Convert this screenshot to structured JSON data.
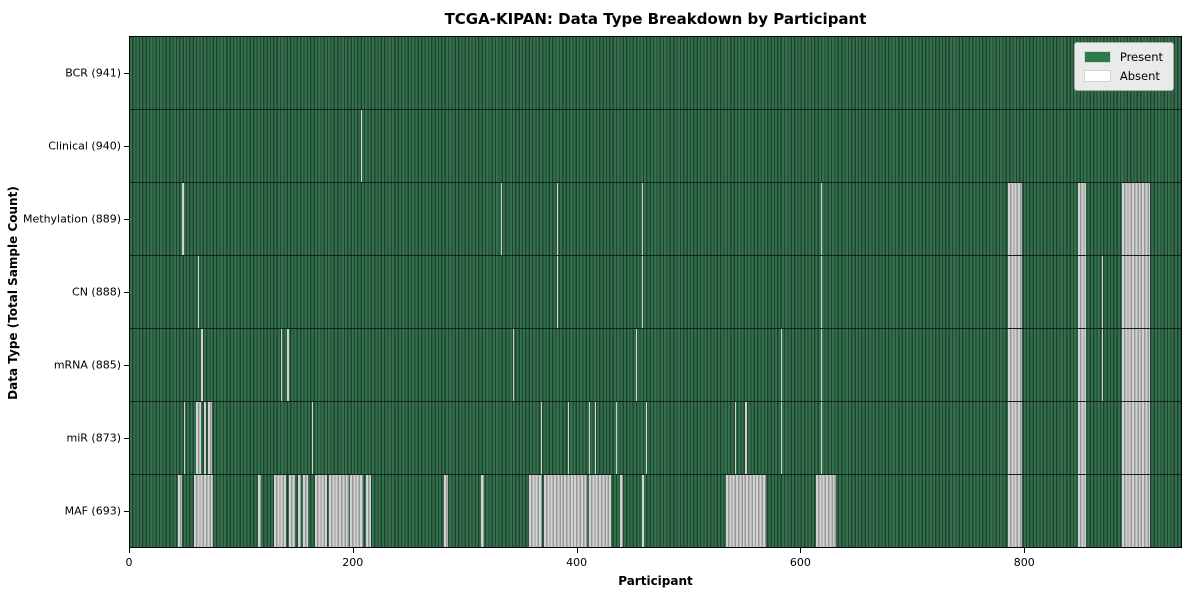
{
  "figure": {
    "title": "TCGA-KIPAN: Data Type Breakdown by Participant",
    "xlabel": "Participant",
    "ylabel": "Data Type (Total Sample Count)"
  },
  "legend": {
    "items": [
      {
        "label": "Present",
        "color": "#2d7a4d"
      },
      {
        "label": "Absent",
        "color": "#ffffff"
      }
    ]
  },
  "chart_data": {
    "type": "heatmap",
    "title": "TCGA-KIPAN: Data Type Breakdown by Participant",
    "xlabel": "Participant",
    "ylabel": "Data Type (Total Sample Count)",
    "legend_position": "upper right",
    "n_participants": 941,
    "x_ticks": [
      0,
      200,
      400,
      600,
      800
    ],
    "colors": {
      "present": "#2c6347",
      "present_stripe_light": "#33714e",
      "present_stripe_dark": "#20452f",
      "absent": "#bfbfbf",
      "absent_stripe_light": "#d2d2d2",
      "absent_stripe_dark": "#989898"
    },
    "rows": [
      {
        "name": "BCR",
        "label": "BCR (941)",
        "total": 941,
        "absent_segments": []
      },
      {
        "name": "Clinical",
        "label": "Clinical (940)",
        "total": 940,
        "absent_segments": [
          [
            207,
            208
          ]
        ]
      },
      {
        "name": "Methylation",
        "label": "Methylation (889)",
        "total": 889,
        "absent_segments": [
          [
            47,
            48
          ],
          [
            332,
            333
          ],
          [
            382,
            383
          ],
          [
            458,
            459
          ],
          [
            619,
            620
          ],
          [
            786,
            799
          ],
          [
            849,
            856
          ],
          [
            888,
            913
          ]
        ]
      },
      {
        "name": "CN",
        "label": "CN (888)",
        "total": 888,
        "absent_segments": [
          [
            61,
            62
          ],
          [
            382,
            383
          ],
          [
            458,
            459
          ],
          [
            619,
            620
          ],
          [
            786,
            799
          ],
          [
            849,
            856
          ],
          [
            870,
            871
          ],
          [
            888,
            913
          ]
        ]
      },
      {
        "name": "mRNA",
        "label": "mRNA (885)",
        "total": 885,
        "absent_segments": [
          [
            64,
            65
          ],
          [
            135,
            136
          ],
          [
            141,
            142
          ],
          [
            343,
            344
          ],
          [
            453,
            454
          ],
          [
            583,
            584
          ],
          [
            619,
            620
          ],
          [
            786,
            799
          ],
          [
            849,
            856
          ],
          [
            870,
            871
          ],
          [
            888,
            913
          ]
        ]
      },
      {
        "name": "miR",
        "label": "miR (873)",
        "total": 873,
        "absent_segments": [
          [
            48,
            49
          ],
          [
            59,
            64
          ],
          [
            66,
            68
          ],
          [
            70,
            73
          ],
          [
            163,
            164
          ],
          [
            368,
            369
          ],
          [
            392,
            393
          ],
          [
            411,
            412
          ],
          [
            416,
            417
          ],
          [
            435,
            436
          ],
          [
            462,
            463
          ],
          [
            542,
            543
          ],
          [
            551,
            552
          ],
          [
            583,
            584
          ],
          [
            619,
            620
          ],
          [
            786,
            799
          ],
          [
            849,
            856
          ],
          [
            888,
            913
          ]
        ]
      },
      {
        "name": "MAF",
        "label": "MAF (693)",
        "total": 693,
        "absent_segments": [
          [
            43,
            47
          ],
          [
            57,
            74
          ],
          [
            115,
            117
          ],
          [
            129,
            140
          ],
          [
            142,
            148
          ],
          [
            150,
            153
          ],
          [
            155,
            159
          ],
          [
            166,
            176
          ],
          [
            178,
            196
          ],
          [
            197,
            209
          ],
          [
            211,
            216
          ],
          [
            281,
            285
          ],
          [
            314,
            317
          ],
          [
            357,
            369
          ],
          [
            371,
            409
          ],
          [
            411,
            431
          ],
          [
            439,
            441
          ],
          [
            458,
            460
          ],
          [
            534,
            569
          ],
          [
            614,
            632
          ],
          [
            786,
            799
          ],
          [
            849,
            856
          ],
          [
            888,
            913
          ]
        ]
      }
    ]
  }
}
